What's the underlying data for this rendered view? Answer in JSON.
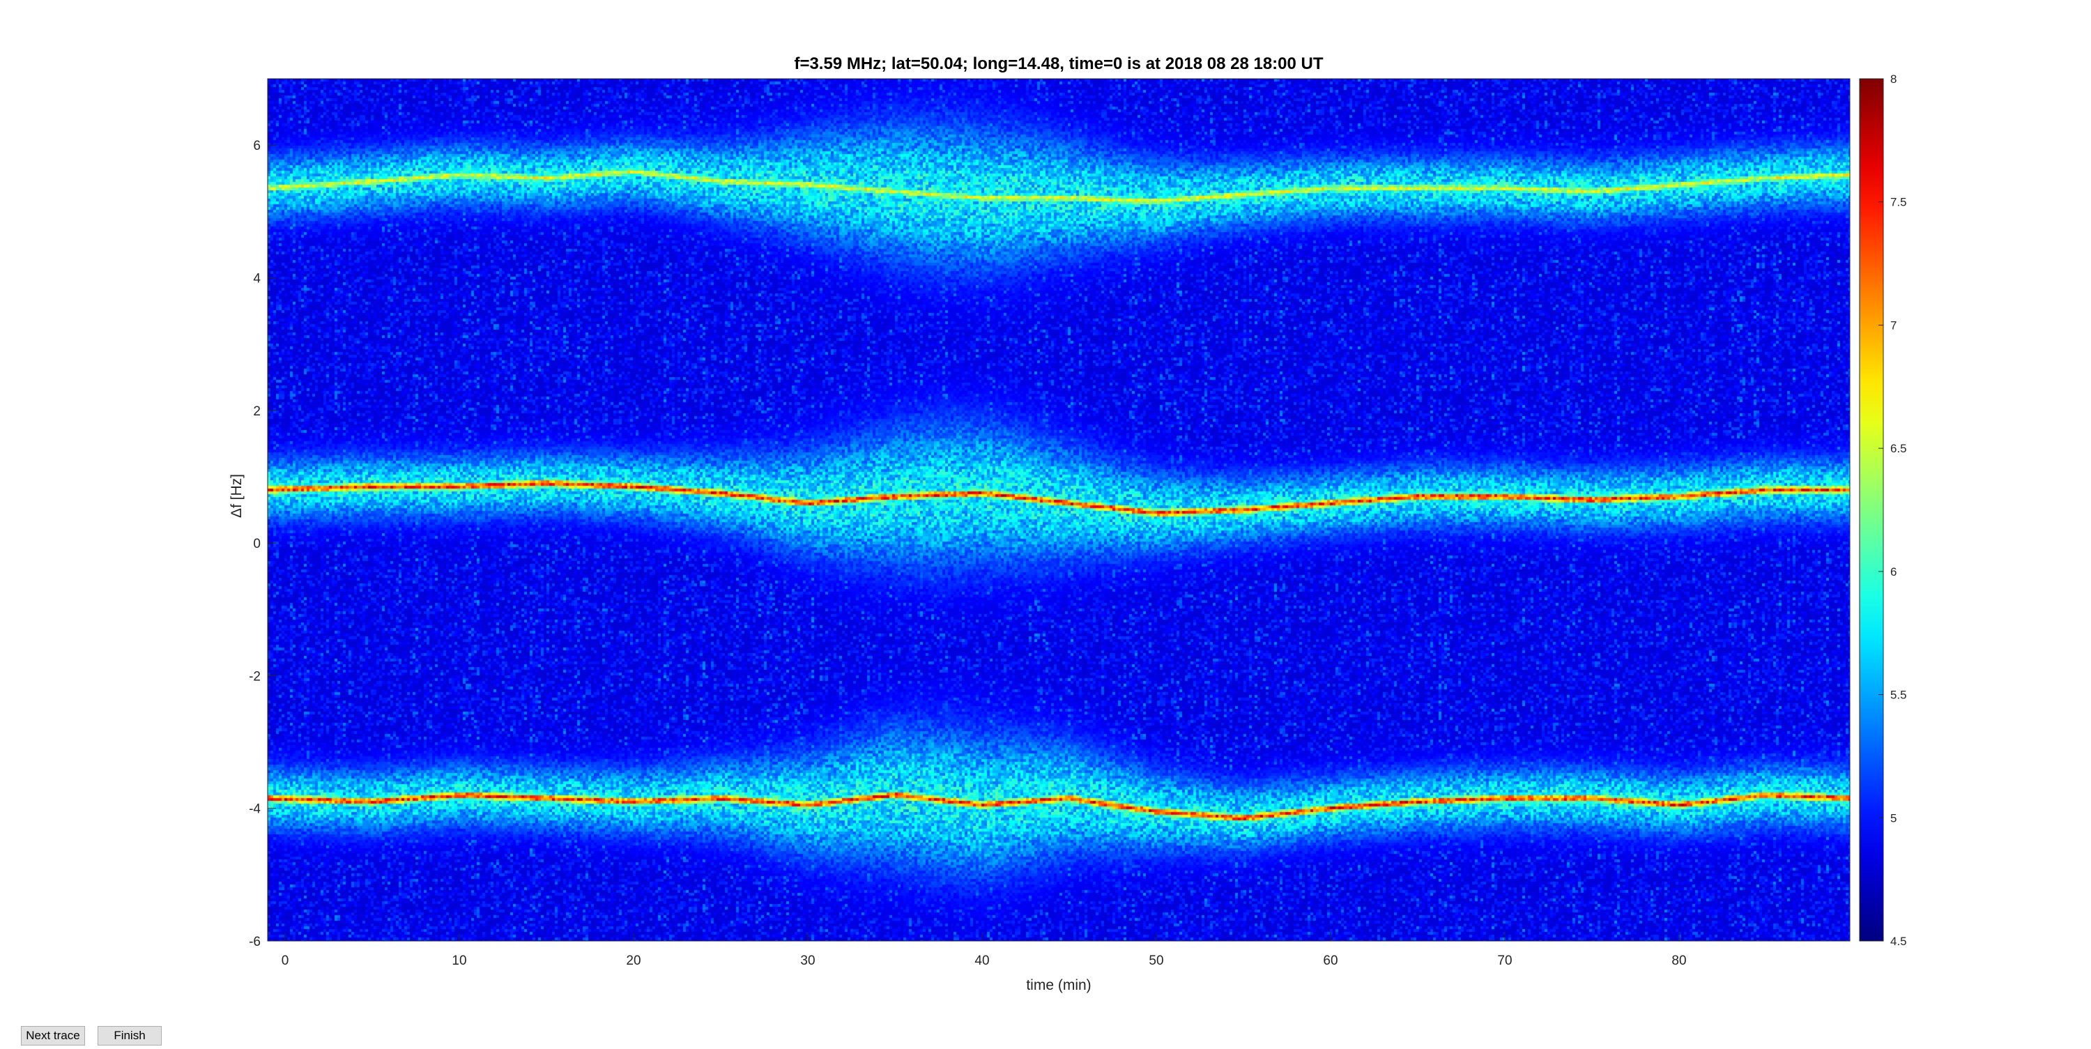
{
  "buttons": {
    "next_trace": "Next trace",
    "finish": "Finish"
  },
  "chart_data": {
    "type": "heatmap",
    "title": "f=3.59 MHz;  lat=50.04; long=14.48, time=0 is at 2018 08 28 18:00 UT",
    "xlabel": "time (min)",
    "ylabel": "Δf [Hz]",
    "xlim": [
      -1,
      89.8
    ],
    "ylim": [
      -6,
      7
    ],
    "xticks": [
      0,
      10,
      20,
      30,
      40,
      50,
      60,
      70,
      80
    ],
    "yticks": [
      -6,
      -4,
      -2,
      0,
      2,
      4,
      6
    ],
    "colorbar": {
      "limits": [
        4.5,
        8
      ],
      "ticks": [
        4.5,
        5,
        5.5,
        6,
        6.5,
        7,
        7.5,
        8
      ],
      "colormap": "jet"
    },
    "background_level": 4.8,
    "traces": [
      {
        "time": [
          -1,
          5,
          10,
          15,
          20,
          25,
          30,
          35,
          40,
          45,
          50,
          55,
          60,
          65,
          70,
          75,
          80,
          85,
          89.8
        ],
        "freq": [
          5.35,
          5.45,
          5.55,
          5.5,
          5.6,
          5.45,
          5.4,
          5.3,
          5.2,
          5.2,
          5.15,
          5.25,
          5.35,
          5.35,
          5.35,
          5.3,
          5.4,
          5.5,
          5.55
        ],
        "peak": 6.8
      },
      {
        "time": [
          -1,
          5,
          10,
          15,
          20,
          25,
          30,
          35,
          40,
          45,
          50,
          55,
          60,
          65,
          70,
          75,
          80,
          85,
          89.8
        ],
        "freq": [
          0.8,
          0.85,
          0.85,
          0.9,
          0.85,
          0.75,
          0.6,
          0.7,
          0.75,
          0.6,
          0.45,
          0.5,
          0.6,
          0.7,
          0.7,
          0.65,
          0.7,
          0.8,
          0.8
        ],
        "peak": 7.7
      },
      {
        "time": [
          -1,
          5,
          10,
          15,
          20,
          25,
          30,
          35,
          40,
          45,
          50,
          55,
          60,
          65,
          70,
          75,
          80,
          85,
          89.8
        ],
        "freq": [
          -3.85,
          -3.9,
          -3.8,
          -3.85,
          -3.9,
          -3.85,
          -3.95,
          -3.8,
          -3.95,
          -3.85,
          -4.05,
          -4.15,
          -4.0,
          -3.9,
          -3.85,
          -3.85,
          -3.95,
          -3.8,
          -3.85
        ],
        "peak": 7.7
      }
    ]
  }
}
